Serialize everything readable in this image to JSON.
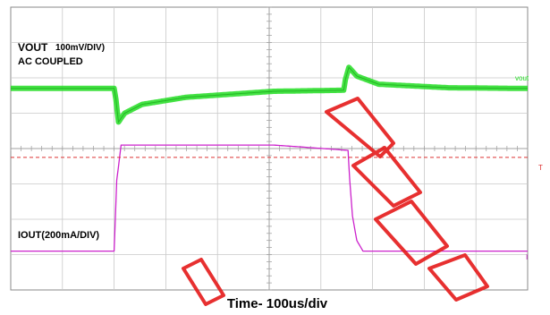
{
  "chart_data": {
    "type": "line",
    "title": "",
    "xlabel": "Time- 100us/div",
    "grid": true,
    "x_divisions": 10,
    "y_divisions": 8,
    "x_unit": "us",
    "x_per_div": 100,
    "series": [
      {
        "name": "VOUT",
        "label_main": "VOUT",
        "label_scale": "100mV/DIV)",
        "label_coupling": "AC COUPLED",
        "channel_tag": "vout",
        "color": "#22dd22",
        "scale_per_div": "100mV",
        "baseline_div": 5.7,
        "x": [
          0,
          118,
          120,
          123,
          130,
          150,
          200,
          300,
          380,
          382,
          386,
          395,
          420,
          500,
          590
        ],
        "y": [
          0,
          0,
          -0.3,
          -0.95,
          -0.7,
          -0.45,
          -0.25,
          -0.08,
          -0.05,
          0.25,
          0.6,
          0.35,
          0.12,
          0.02,
          0.0
        ]
      },
      {
        "name": "IOUT",
        "label_main": "IOUT(200mA/DIV)",
        "channel_tag": "I",
        "color": "#cc22cc",
        "scale_per_div": "200mA",
        "baseline_div": 1.1,
        "x": [
          0,
          118,
          121,
          126,
          300,
          385,
          387,
          390,
          395,
          402,
          590
        ],
        "y": [
          0,
          0,
          2.0,
          3.0,
          3.0,
          2.85,
          2.0,
          1.0,
          0.3,
          0.0,
          0.0
        ]
      }
    ],
    "trigger_level_div": 3.75,
    "trigger_tag": "T",
    "watermark": "GUIDED"
  }
}
